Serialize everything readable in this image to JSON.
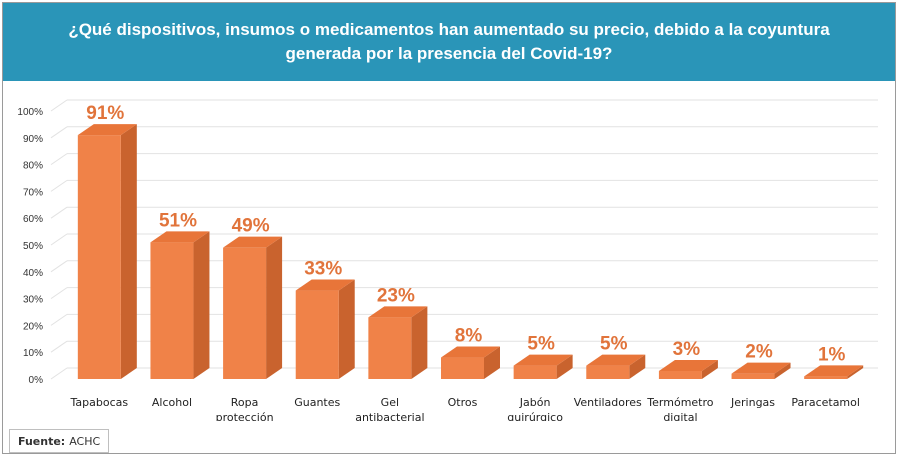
{
  "header": {
    "title": "¿Qué  dispositivos, insumos o medicamentos han aumentado su precio, debido a la coyuntura generada por la presencia del Covid-19?"
  },
  "source": {
    "label": "Fuente:",
    "value": "ACHC"
  },
  "colors": {
    "banner": "#2a95b8",
    "bar_front": "#f08248",
    "bar_side": "#c9632e",
    "bar_top": "#e87539",
    "value_label": "#e1743b"
  },
  "chart_data": {
    "type": "bar",
    "three_d": true,
    "title": "",
    "xlabel": "",
    "ylabel": "",
    "ylim": [
      0,
      100
    ],
    "yticks": [
      0,
      10,
      20,
      30,
      40,
      50,
      60,
      70,
      80,
      90,
      100
    ],
    "ytick_labels": [
      "0%",
      "10%",
      "20%",
      "30%",
      "40%",
      "50%",
      "60%",
      "70%",
      "80%",
      "90%",
      "100%"
    ],
    "grid": true,
    "categories": [
      [
        "Tapabocas"
      ],
      [
        "Alcohol"
      ],
      [
        "Ropa",
        "protección"
      ],
      [
        "Guantes"
      ],
      [
        "Gel",
        "antibacterial"
      ],
      [
        "Otros"
      ],
      [
        "Jabón",
        "quirúrgico"
      ],
      [
        "Ventiladores"
      ],
      [
        "Termómetro",
        "digital"
      ],
      [
        "Jeringas"
      ],
      [
        "Paracetamol"
      ]
    ],
    "values": [
      91,
      51,
      49,
      33,
      23,
      8,
      5,
      5,
      3,
      2,
      1
    ],
    "value_labels": [
      "91%",
      "51%",
      "49%",
      "33%",
      "23%",
      "8%",
      "5%",
      "5%",
      "3%",
      "2%",
      "1%"
    ]
  }
}
